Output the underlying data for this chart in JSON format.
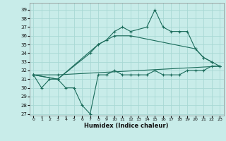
{
  "background_color": "#c8ece9",
  "grid_color": "#a8d8d4",
  "line_color": "#1a6b5a",
  "xlabel": "Humidex (Indice chaleur)",
  "xlim": [
    -0.5,
    23.5
  ],
  "ylim": [
    26.8,
    39.8
  ],
  "yticks": [
    27,
    28,
    29,
    30,
    31,
    32,
    33,
    34,
    35,
    36,
    37,
    38,
    39
  ],
  "xticks": [
    0,
    1,
    2,
    3,
    4,
    5,
    6,
    7,
    8,
    9,
    10,
    11,
    12,
    13,
    14,
    15,
    16,
    17,
    18,
    19,
    20,
    21,
    22,
    23
  ],
  "series": [
    {
      "x": [
        0,
        1,
        2,
        3,
        4,
        5,
        6,
        7,
        8,
        9,
        10,
        11,
        12,
        13,
        14,
        15,
        16,
        17,
        18,
        19,
        20,
        21,
        22,
        23
      ],
      "y": [
        31.5,
        30.0,
        31.0,
        31.0,
        30.0,
        30.0,
        28.0,
        27.0,
        31.5,
        31.5,
        32.0,
        31.5,
        31.5,
        31.5,
        31.5,
        32.0,
        31.5,
        31.5,
        31.5,
        32.0,
        32.0,
        32.0,
        32.5,
        32.5
      ]
    },
    {
      "x": [
        0,
        3,
        8,
        9,
        10,
        11,
        12,
        14,
        15,
        16,
        17,
        18,
        19,
        20,
        21,
        22
      ],
      "y": [
        31.5,
        31.0,
        35.0,
        35.5,
        36.5,
        37.0,
        36.5,
        37.0,
        39.0,
        37.0,
        36.5,
        36.5,
        36.5,
        34.5,
        33.5,
        33.0
      ]
    },
    {
      "x": [
        0,
        3,
        7,
        8,
        10,
        12,
        20,
        21,
        22,
        23
      ],
      "y": [
        31.5,
        31.0,
        34.0,
        35.0,
        36.0,
        36.0,
        34.5,
        33.5,
        33.0,
        32.5
      ]
    },
    {
      "x": [
        0,
        3,
        23
      ],
      "y": [
        31.5,
        31.5,
        32.5
      ]
    }
  ]
}
